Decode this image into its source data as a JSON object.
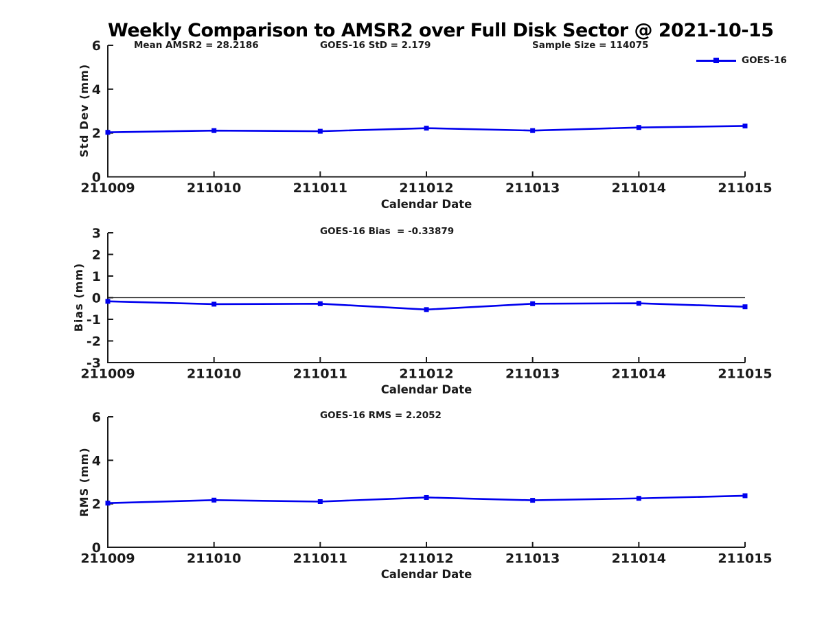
{
  "title": "Weekly Comparison to AMSR2 over Full Disk Sector @ 2021-10-15",
  "colors": {
    "line": "#0000ee",
    "axis": "#1a1a1a",
    "tick_text": "#1a1a1a"
  },
  "chart_data": [
    {
      "type": "line",
      "x": [
        "211009",
        "211010",
        "211011",
        "211012",
        "211013",
        "211014",
        "211015"
      ],
      "series": [
        {
          "name": "GOES-16",
          "values": [
            2.03,
            2.11,
            2.08,
            2.22,
            2.11,
            2.25,
            2.32
          ]
        }
      ],
      "annotations": [
        "Mean AMSR2 = 28.2186",
        "GOES-16 StD = 2.179",
        "Sample Size = 114075"
      ],
      "xlabel": "Calendar Date",
      "ylabel": "Std Dev (mm)",
      "ylim": [
        0,
        6
      ],
      "yticks": [
        0,
        2,
        4,
        6
      ],
      "grid": false,
      "zero_line": false,
      "legend_position": "upper right",
      "marker": "square"
    },
    {
      "type": "line",
      "x": [
        "211009",
        "211010",
        "211011",
        "211012",
        "211013",
        "211014",
        "211015"
      ],
      "series": [
        {
          "name": "GOES-16",
          "values": [
            -0.17,
            -0.3,
            -0.28,
            -0.55,
            -0.28,
            -0.26,
            -0.42
          ]
        }
      ],
      "annotations": [
        "GOES-16 Bias  = -0.33879"
      ],
      "xlabel": "Calendar Date",
      "ylabel": "Bias (mm)",
      "ylim": [
        -3,
        3
      ],
      "yticks": [
        -3,
        -2,
        -1,
        0,
        1,
        2,
        3
      ],
      "grid": false,
      "zero_line": true,
      "legend_position": "none",
      "marker": "square"
    },
    {
      "type": "line",
      "x": [
        "211009",
        "211010",
        "211011",
        "211012",
        "211013",
        "211014",
        "211015"
      ],
      "series": [
        {
          "name": "GOES-16",
          "values": [
            2.03,
            2.17,
            2.1,
            2.29,
            2.16,
            2.25,
            2.37
          ]
        }
      ],
      "annotations": [
        "GOES-16 RMS = 2.2052"
      ],
      "xlabel": "Calendar Date",
      "ylabel": "RMS (mm)",
      "ylim": [
        0,
        6
      ],
      "yticks": [
        0,
        2,
        4,
        6
      ],
      "grid": false,
      "zero_line": false,
      "legend_position": "none",
      "marker": "square"
    }
  ]
}
